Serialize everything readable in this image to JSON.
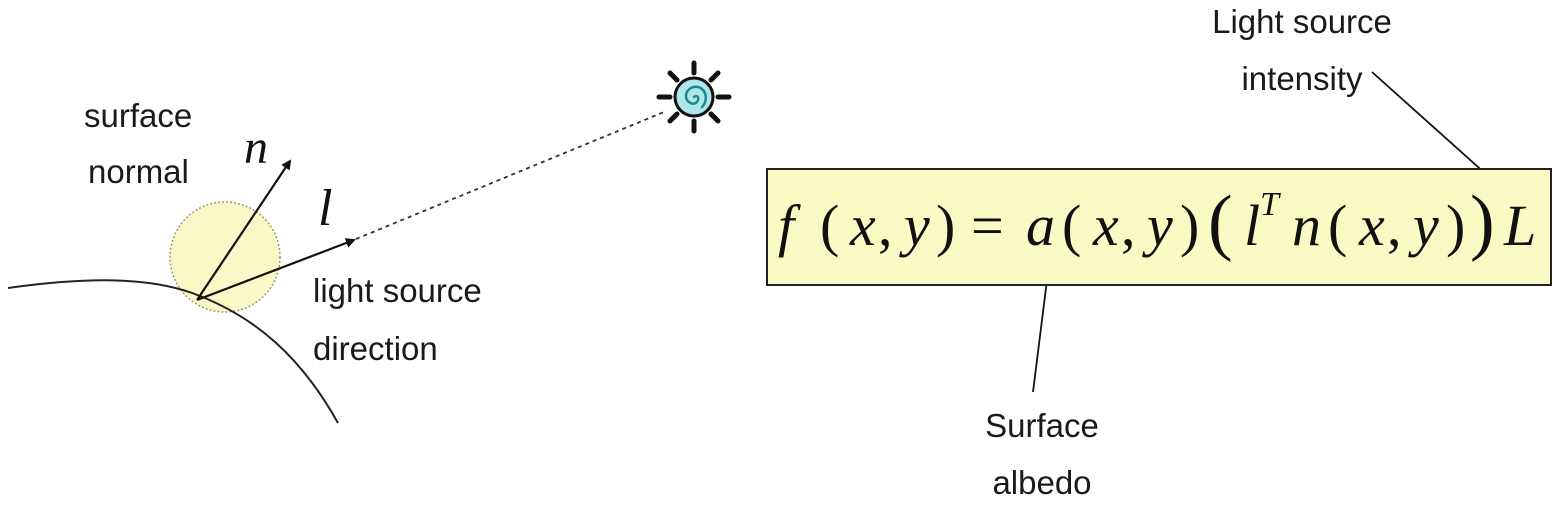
{
  "labels": {
    "surface_normal": [
      "surface",
      "normal"
    ],
    "light_source_direction": [
      "light source",
      "direction"
    ],
    "light_source_intensity": [
      "Light source",
      "intensity"
    ],
    "surface_albedo": [
      "Surface",
      "albedo"
    ]
  },
  "symbols": {
    "normal": "n",
    "light": "l"
  },
  "formula": {
    "f": "f",
    "x": "x",
    "comma": ",",
    "y": "y",
    "eq": "=",
    "a": "a",
    "l": "l",
    "T": "T",
    "n": "n",
    "L": "L",
    "lparen": "(",
    "rparen": ")"
  },
  "colors": {
    "formula_box_fill": "#fafac4",
    "albedo_disk_fill": "#fbf8c8",
    "sun_spiral": "#2aa6a6",
    "sun_body": "#aee6ea"
  },
  "icons": {
    "light_source": "sun-icon"
  }
}
